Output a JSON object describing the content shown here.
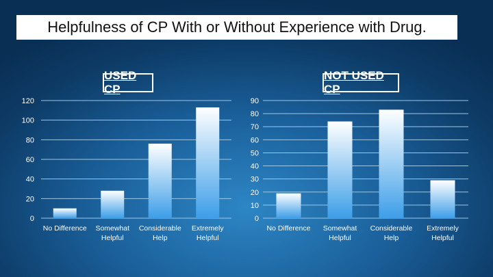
{
  "slide": {
    "title": "Helpfulness of CP With or Without Experience with Drug."
  },
  "colors": {
    "bar_top": "#ffffff",
    "bar_bottom": "#3d9ee8",
    "text": "#ffffff"
  },
  "chart_data": [
    {
      "type": "bar",
      "title": "USED CP",
      "categories": [
        [
          "No Difference"
        ],
        [
          "Somewhat",
          "Helpful"
        ],
        [
          "Considerable",
          "Help"
        ],
        [
          "Extremely",
          "Helpful"
        ]
      ],
      "values": [
        10,
        28,
        76,
        113
      ],
      "ylim": [
        0,
        120
      ],
      "yticks": [
        0,
        20,
        40,
        60,
        80,
        100,
        120
      ],
      "grid": true,
      "xlabel": "",
      "ylabel": ""
    },
    {
      "type": "bar",
      "title": "NOT USED CP",
      "categories": [
        [
          "No Difference"
        ],
        [
          "Somewhat",
          "Helpful"
        ],
        [
          "Considerable",
          "Help"
        ],
        [
          "Extremely",
          "Helpful"
        ]
      ],
      "values": [
        19,
        74,
        83,
        29
      ],
      "ylim": [
        0,
        90
      ],
      "yticks": [
        0,
        10,
        20,
        30,
        40,
        50,
        60,
        70,
        80,
        90
      ],
      "grid": true,
      "xlabel": "",
      "ylabel": ""
    }
  ]
}
